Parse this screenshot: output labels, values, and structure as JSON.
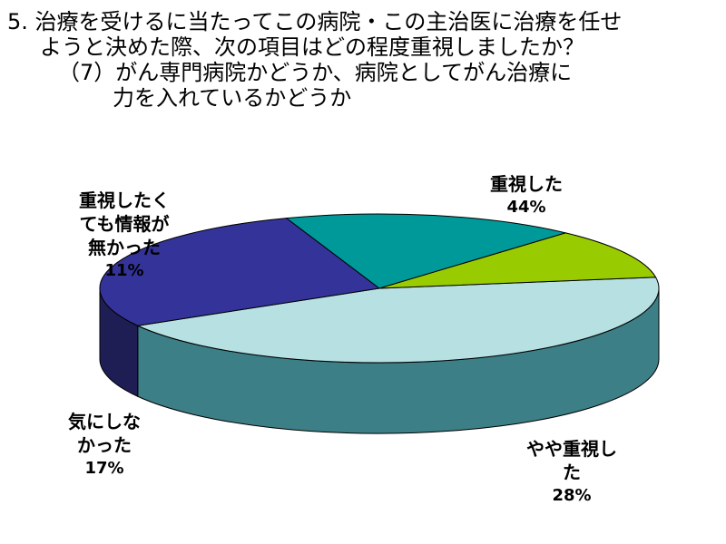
{
  "title": {
    "line1": "5. 治療を受けるに当たってこの病院・この主治医に治療を任せ",
    "line2": "ようと決めた際、次の項目はどの程度重視しましたか？",
    "line3": "（7）がん専門病院かどうか、病院としてがん治療に",
    "line4": "力を入れているかどうか"
  },
  "chart_data": {
    "type": "pie",
    "title": "5. 治療を受けるに当たってこの病院・この主治医に治療を任せようと決めた際、次の項目はどの程度重視しましたか？（7）がん専門病院かどうか、病院としてがん治療に力を入れているかどうか",
    "style": "3d",
    "slices": [
      {
        "label_lines": [
          "重視した"
        ],
        "value": 44,
        "value_label": "44%",
        "color": "#b7e0e3",
        "side_color": "#3c7f86"
      },
      {
        "label_lines": [
          "やや重視し",
          "た"
        ],
        "value": 28,
        "value_label": "28%",
        "color": "#333399",
        "side_color": "#1e1e55"
      },
      {
        "label_lines": [
          "気にしな",
          "かった"
        ],
        "value": 17,
        "value_label": "17%",
        "color": "#009999",
        "side_color": "#004c4c"
      },
      {
        "label_lines": [
          "重視したく",
          "ても情報が",
          "無かった"
        ],
        "value": 11,
        "value_label": "11%",
        "color": "#99cc00",
        "side_color": "#5c7a00"
      }
    ]
  }
}
